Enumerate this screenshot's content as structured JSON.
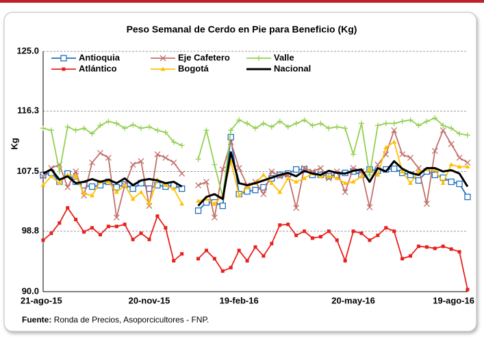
{
  "chart_data": {
    "type": "line",
    "title": "Peso Semanal de Cerdo en Pie para Beneficio (Kg)",
    "y_label": "Kg",
    "source_label": "Fuente:",
    "source_text": "Ronda de Precios, Asoporcicultores - FNP.",
    "categories": [
      "21-ago-15",
      null,
      null,
      null,
      null,
      null,
      null,
      null,
      null,
      null,
      null,
      null,
      null,
      "20-nov-15",
      null,
      null,
      null,
      null,
      null,
      null,
      null,
      null,
      null,
      null,
      "19-feb-16",
      null,
      null,
      null,
      null,
      null,
      null,
      null,
      null,
      null,
      null,
      null,
      null,
      null,
      "20-may-16",
      null,
      null,
      null,
      null,
      null,
      null,
      null,
      null,
      null,
      null,
      null,
      null,
      null,
      "19-ago-16"
    ],
    "ylim": [
      90,
      125
    ],
    "yticks": [
      {
        "value": 90,
        "label": "90.0"
      },
      98.8,
      107.5,
      116.3,
      {
        "value": 125,
        "label": "125.0"
      }
    ],
    "grid": true,
    "legend": "top-left",
    "series": [
      {
        "name": "Antioquia",
        "color": "#1f6fc0",
        "marker": "square-open",
        "values": [
          107,
          107.3,
          106,
          107.2,
          106,
          105.5,
          105.3,
          105.5,
          106,
          105.2,
          105.6,
          105,
          105.8,
          105,
          105.5,
          105.3,
          105.5,
          105,
          null,
          101.8,
          103,
          103,
          102.5,
          112.5,
          104.2,
          104.6,
          104.8,
          105.2,
          106.5,
          107,
          107.2,
          107.8,
          107.8,
          107,
          107,
          106.8,
          107,
          107.3,
          107.5,
          107,
          107.8,
          107.6,
          107.8,
          107.9,
          107.3,
          107,
          106.2,
          107.5,
          107,
          106.6,
          106,
          105.7,
          103.8
        ]
      },
      {
        "name": "Eje Cafetero",
        "color": "#c0706a",
        "marker": "x",
        "values": [
          106.8,
          108,
          108.5,
          105.2,
          107.5,
          104,
          108.8,
          110.2,
          109.5,
          100.8,
          105.5,
          108.5,
          109,
          102.5,
          110,
          109.5,
          108.8,
          107.2,
          null,
          105.5,
          106,
          100.8,
          107.8,
          111.8,
          108,
          105.5,
          106,
          104.2,
          107.5,
          106.8,
          107,
          102.2,
          108,
          107.5,
          108,
          106.5,
          107.5,
          104.5,
          108,
          107.5,
          102.3,
          108.5,
          110,
          113.5,
          110,
          109.5,
          108,
          102.8,
          110.5,
          113.5,
          111.5,
          109.5,
          108.8
        ]
      },
      {
        "name": "Valle",
        "color": "#92d050",
        "marker": "plus",
        "values": [
          113.8,
          113.5,
          107.5,
          114,
          113.5,
          113.8,
          113,
          114.2,
          114.8,
          114.5,
          113.8,
          114.3,
          113.8,
          114,
          113.5,
          113.2,
          111.8,
          111.3,
          null,
          109.3,
          113.5,
          108.5,
          103.8,
          113.5,
          115,
          114.5,
          113.8,
          114.5,
          114,
          114.8,
          114,
          114.5,
          115,
          114.2,
          114.5,
          113.8,
          114,
          113.8,
          110,
          114.5,
          107,
          114.2,
          114.5,
          114.5,
          114.8,
          115,
          114.2,
          114.8,
          115.3,
          114.2,
          113.8,
          113,
          112.8
        ]
      },
      {
        "name": "Atlántico",
        "color": "#e8201c",
        "marker": "square",
        "values": [
          97.5,
          98.5,
          100,
          102.2,
          100.5,
          98.7,
          99.3,
          98.3,
          99.5,
          99.5,
          99.8,
          97.6,
          98.5,
          97.6,
          101,
          99.3,
          94.5,
          95.5,
          null,
          94.8,
          96,
          94.8,
          93,
          93.5,
          96,
          94.5,
          96.5,
          95.2,
          97,
          99.7,
          99.8,
          98.2,
          98.8,
          97.8,
          98,
          98.8,
          97.5,
          94.5,
          98.8,
          98.5,
          97.5,
          98.2,
          99.3,
          98.8,
          94.8,
          95.2,
          96.6,
          96.5,
          96.3,
          96.6,
          96.2,
          95.8,
          90.3
        ]
      },
      {
        "name": "Bogotá",
        "color": "#ffc000",
        "marker": "triangle",
        "values": [
          105.5,
          106.8,
          105.8,
          107,
          106.8,
          104.3,
          104,
          106,
          106,
          104.5,
          105.5,
          103.5,
          104.5,
          102.8,
          106.3,
          105.5,
          105,
          102.8,
          null,
          103.2,
          103.5,
          102.8,
          104,
          109,
          104,
          105.2,
          105.8,
          107,
          105.8,
          104.5,
          106.5,
          106,
          106.5,
          107.2,
          106.8,
          106.8,
          106.5,
          105.8,
          106,
          106.8,
          107.8,
          107,
          111,
          111.8,
          107.5,
          105.8,
          107.5,
          107.8,
          107.8,
          105.8,
          108.5,
          108.2,
          108.2
        ]
      },
      {
        "name": "Nacional",
        "color": "#000000",
        "marker": "none",
        "values": [
          107.2,
          107.8,
          106.3,
          106.8,
          105.8,
          106,
          106.4,
          106,
          106.3,
          105.8,
          106.5,
          105.5,
          106.2,
          106.4,
          106.2,
          105.8,
          106,
          105.3,
          null,
          102.5,
          103.8,
          104.2,
          103.5,
          110.3,
          105.8,
          105.5,
          105.8,
          106.2,
          106.6,
          107,
          107.3,
          106.8,
          107.6,
          107.2,
          107,
          107.6,
          107.3,
          107.2,
          107.6,
          107.8,
          106,
          108,
          107.5,
          109,
          107.9,
          107.3,
          107,
          108,
          108,
          107.5,
          107.7,
          107.2,
          105.3
        ]
      }
    ]
  }
}
